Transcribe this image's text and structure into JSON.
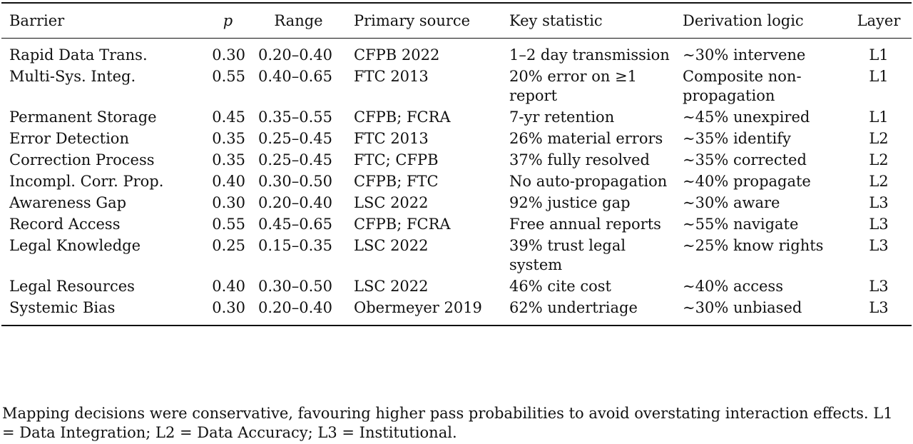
{
  "table": {
    "headers": [
      "Barrier",
      "p",
      "Range",
      "Primary source",
      "Key statistic",
      "Derivation logic",
      "Layer"
    ],
    "rows": [
      [
        "Rapid Data Trans.",
        "0.30",
        "0.20–0.40",
        "CFPB 2022",
        "1–2 day transmission",
        "∼30% intervene",
        "L1"
      ],
      [
        "Multi-Sys. Integ.",
        "0.55",
        "0.40–0.65",
        "FTC 2013",
        "20% error on ≥1 report",
        "Composite non-propagation",
        "L1"
      ],
      [
        "Permanent Storage",
        "0.45",
        "0.35–0.55",
        "CFPB; FCRA",
        "7-yr retention",
        "∼45% unexpired",
        "L1"
      ],
      [
        "Error Detection",
        "0.35",
        "0.25–0.45",
        "FTC 2013",
        "26% material errors",
        "∼35% identify",
        "L2"
      ],
      [
        "Correction Process",
        "0.35",
        "0.25–0.45",
        "FTC; CFPB",
        "37% fully resolved",
        "∼35% corrected",
        "L2"
      ],
      [
        "Incompl. Corr. Prop.",
        "0.40",
        "0.30–0.50",
        "CFPB; FTC",
        "No auto-propagation",
        "∼40% propagate",
        "L2"
      ],
      [
        "Awareness Gap",
        "0.30",
        "0.20–0.40",
        "LSC 2022",
        "92% justice gap",
        "∼30% aware",
        "L3"
      ],
      [
        "Record Access",
        "0.55",
        "0.45–0.65",
        "CFPB; FCRA",
        "Free annual reports",
        "∼55% navigate",
        "L3"
      ],
      [
        "Legal Knowledge",
        "0.25",
        "0.15–0.35",
        "LSC 2022",
        "39% trust legal system",
        "∼25% know rights",
        "L3"
      ],
      [
        "Legal Resources",
        "0.40",
        "0.30–0.50",
        "LSC 2022",
        "46% cite cost",
        "∼40% access",
        "L3"
      ],
      [
        "Systemic Bias",
        "0.30",
        "0.20–0.40",
        "Obermeyer 2019",
        "62% undertriage",
        "∼30% unbiased",
        "L3"
      ]
    ]
  },
  "note": "Mapping decisions were conservative, favouring higher pass probabilities to avoid overstating interaction effects. L1 = Data Integration; L2 = Data Accuracy; L3 = Institutional."
}
